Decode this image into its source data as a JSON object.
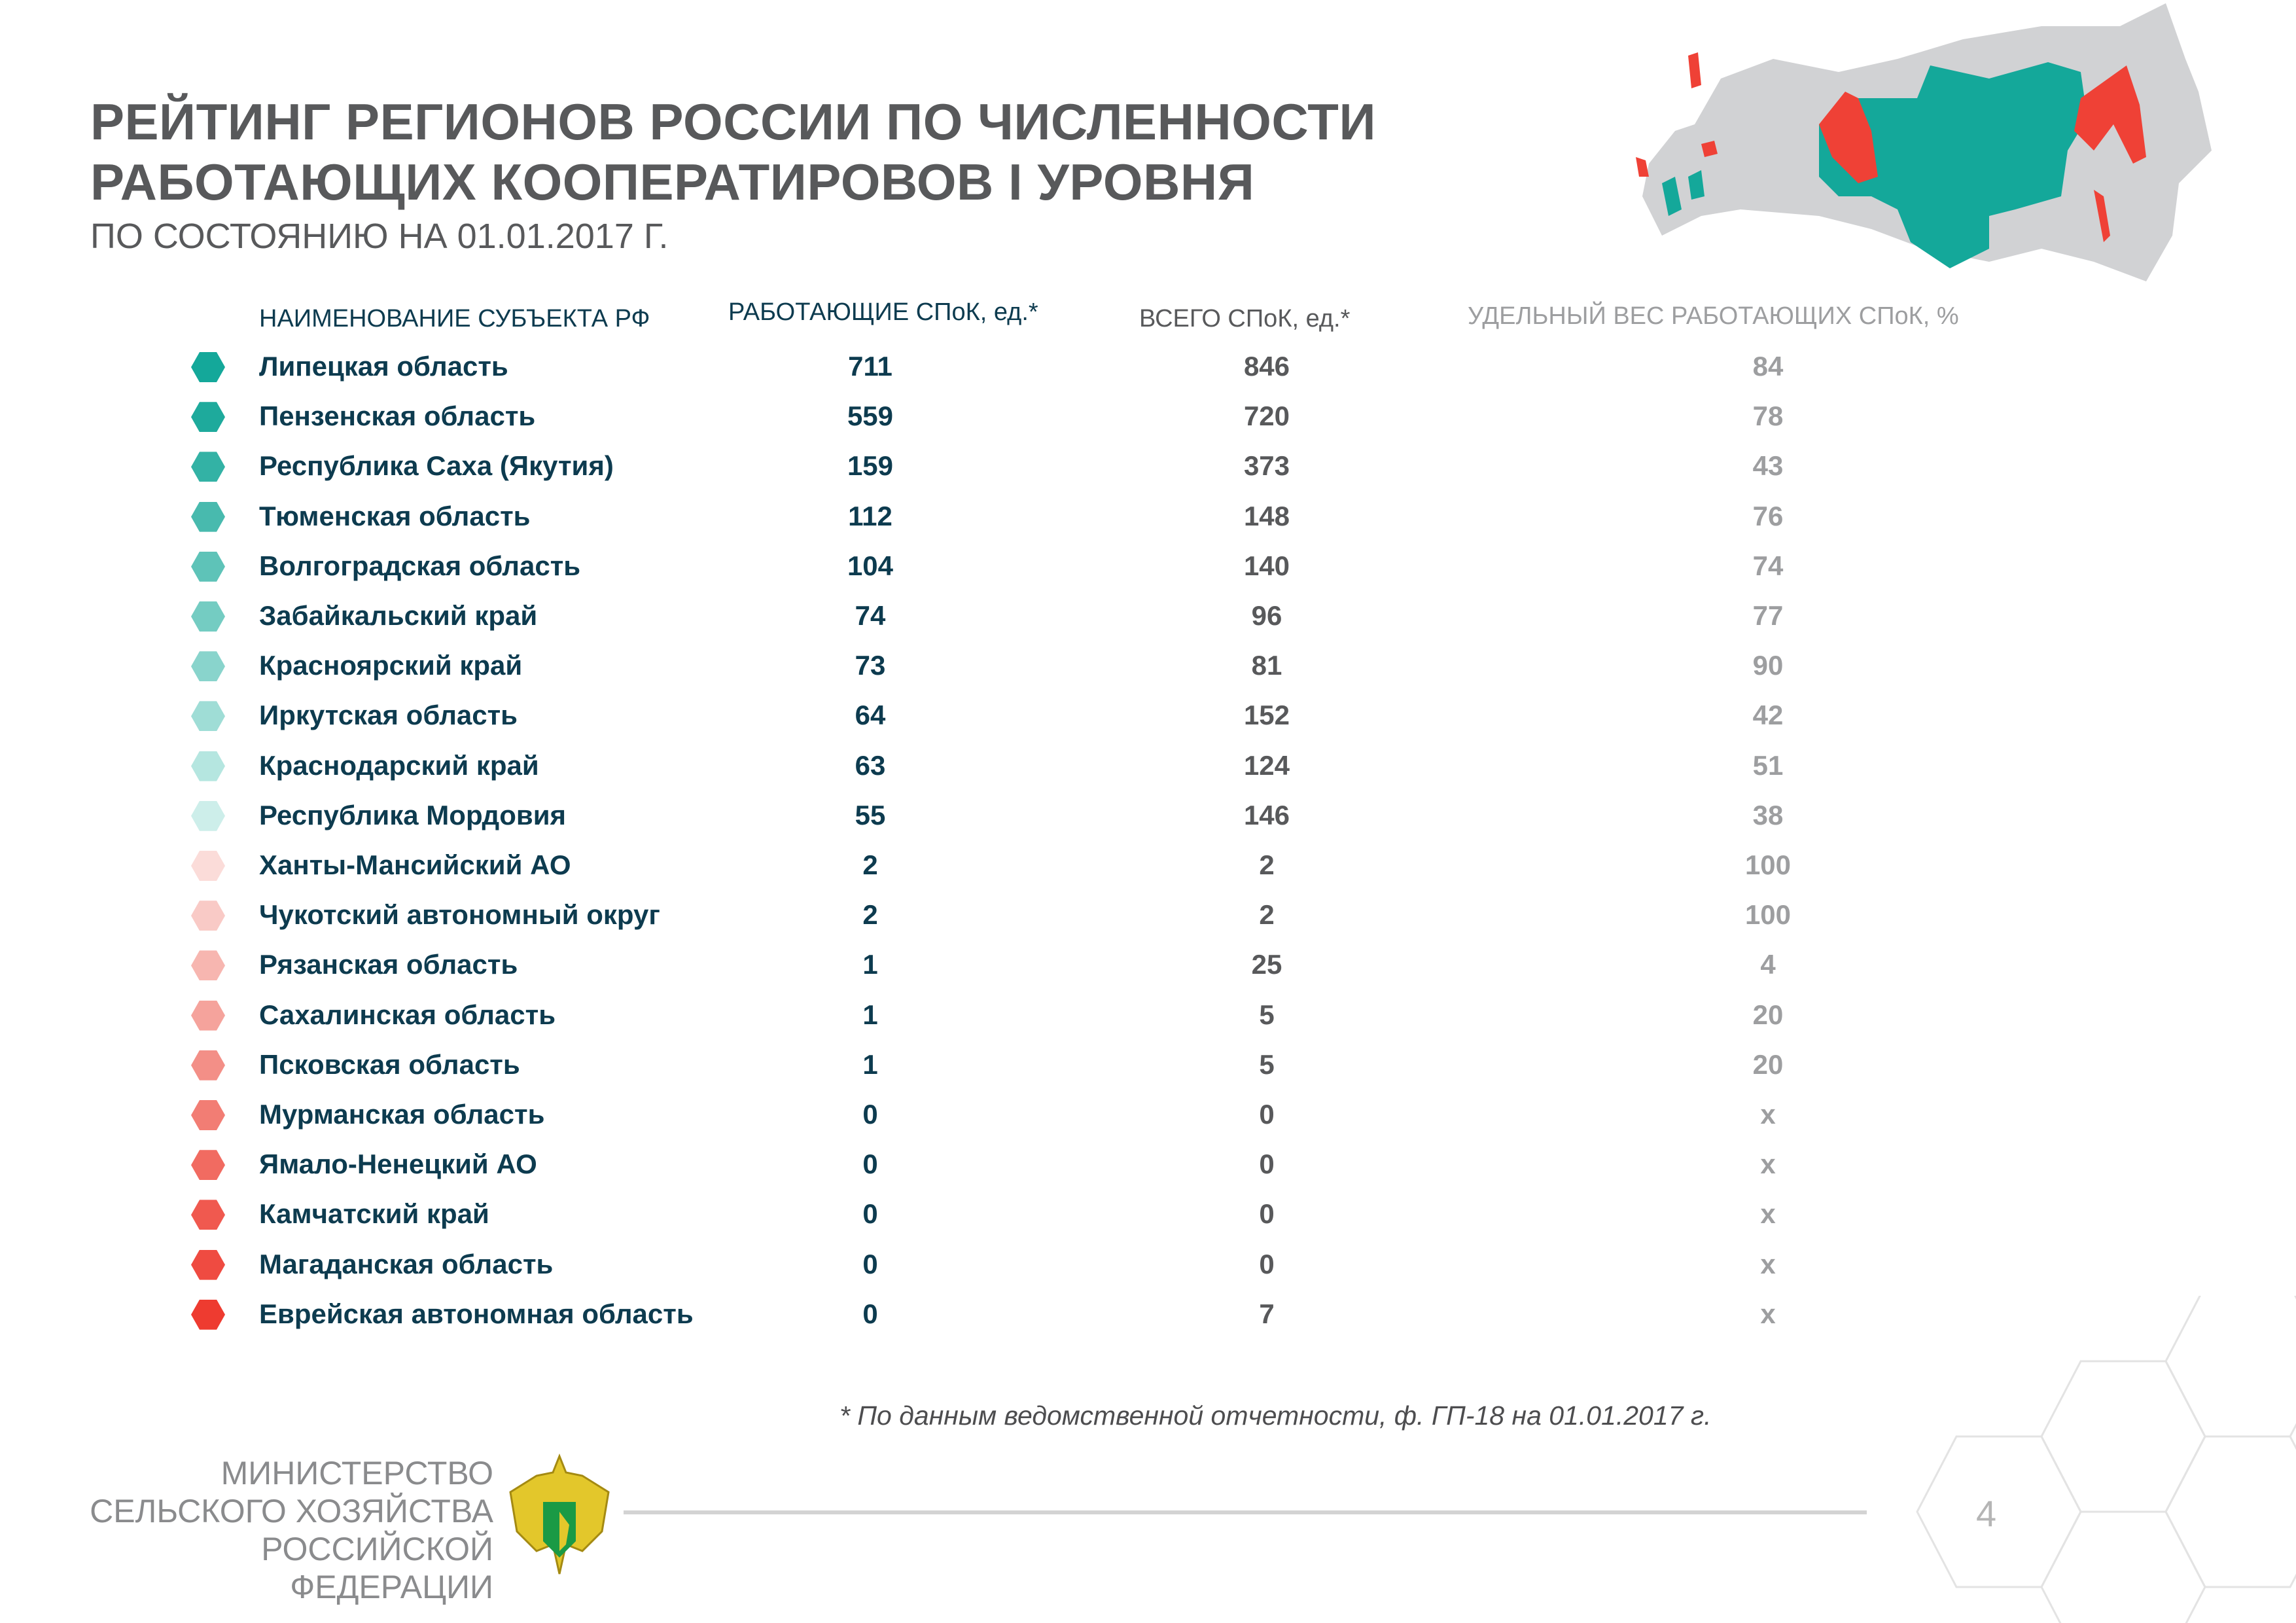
{
  "title_line1": "РЕЙТИНГ РЕГИОНОВ РОССИИ ПО ЧИСЛЕННОСТИ",
  "title_line2": "РАБОТАЮЩИХ КООПЕРАТИРОВОВ I УРОВНЯ",
  "subtitle": "ПО СОСТОЯНИЮ НА 01.01.2017 Г.",
  "columns": {
    "name": "НАИМЕНОВАНИЕ СУБЪЕКТА РФ",
    "working": "РАБОТАЮЩИЕ СПоК, ед.*",
    "total": "ВСЕГО СПоК, ед.*",
    "share": "УДЕЛЬНЫЙ ВЕС РАБОТАЮЩИХ СПоК, %"
  },
  "rows": [
    {
      "name": "Липецкая область",
      "working": "711",
      "total": "846",
      "share": "84",
      "color": "#14a89a"
    },
    {
      "name": "Пензенская область",
      "working": "559",
      "total": "720",
      "share": "78",
      "color": "#1eaa9c"
    },
    {
      "name": "Республика Саха (Якутия)",
      "working": "159",
      "total": "373",
      "share": "43",
      "color": "#33b2a5"
    },
    {
      "name": "Тюменская область",
      "working": "112",
      "total": "148",
      "share": "76",
      "color": "#48baae"
    },
    {
      "name": "Волгоградская область",
      "working": "104",
      "total": "140",
      "share": "74",
      "color": "#5ec3b8"
    },
    {
      "name": "Забайкальский край",
      "working": "74",
      "total": "96",
      "share": "77",
      "color": "#74ccc2"
    },
    {
      "name": "Красноярский край",
      "working": "73",
      "total": "81",
      "share": "90",
      "color": "#89d4cc"
    },
    {
      "name": "Иркутская область",
      "working": "64",
      "total": "152",
      "share": "42",
      "color": "#9fddd6"
    },
    {
      "name": "Краснодарский край",
      "working": "63",
      "total": "124",
      "share": "51",
      "color": "#b5e6e0"
    },
    {
      "name": "Республика Мордовия",
      "working": "55",
      "total": "146",
      "share": "38",
      "color": "#cdeeea"
    },
    {
      "name": "Ханты-Мансийский АО",
      "working": "2",
      "total": "2",
      "share": "100",
      "color": "#fbdcd9"
    },
    {
      "name": "Чукотский автономный округ",
      "working": "2",
      "total": "2",
      "share": "100",
      "color": "#f9cac6"
    },
    {
      "name": "Рязанская область",
      "working": "1",
      "total": "25",
      "share": "4",
      "color": "#f7b6b0"
    },
    {
      "name": "Сахалинская область",
      "working": "1",
      "total": "5",
      "share": "20",
      "color": "#f5a39c"
    },
    {
      "name": "Псковская область",
      "working": "1",
      "total": "5",
      "share": "20",
      "color": "#f38f87"
    },
    {
      "name": "Мурманская область",
      "working": "0",
      "total": "0",
      "share": "x",
      "color": "#f27d74"
    },
    {
      "name": "Ямало-Ненецкий АО",
      "working": "0",
      "total": "0",
      "share": "x",
      "color": "#f16b61"
    },
    {
      "name": "Камчатский край",
      "working": "0",
      "total": "0",
      "share": "x",
      "color": "#f0594f"
    },
    {
      "name": "Магаданская область",
      "working": "0",
      "total": "0",
      "share": "x",
      "color": "#ef4b41"
    },
    {
      "name": "Еврейская автономная область",
      "working": "0",
      "total": "7",
      "share": "x",
      "color": "#ee3b30"
    }
  ],
  "footnote": "* По данным ведомственной отчетности, ф. ГП-18 на 01.01.2017 г.",
  "ministry": [
    "МИНИСТЕРСТВО",
    "СЕЛЬСКОГО ХОЗЯЙСТВА",
    "РОССИЙСКОЙ",
    "ФЕДЕРАЦИИ"
  ],
  "page_number": "4",
  "colors": {
    "teal": "#14a89a",
    "red": "#ef4136",
    "gray_map": "#d1d2d4"
  }
}
